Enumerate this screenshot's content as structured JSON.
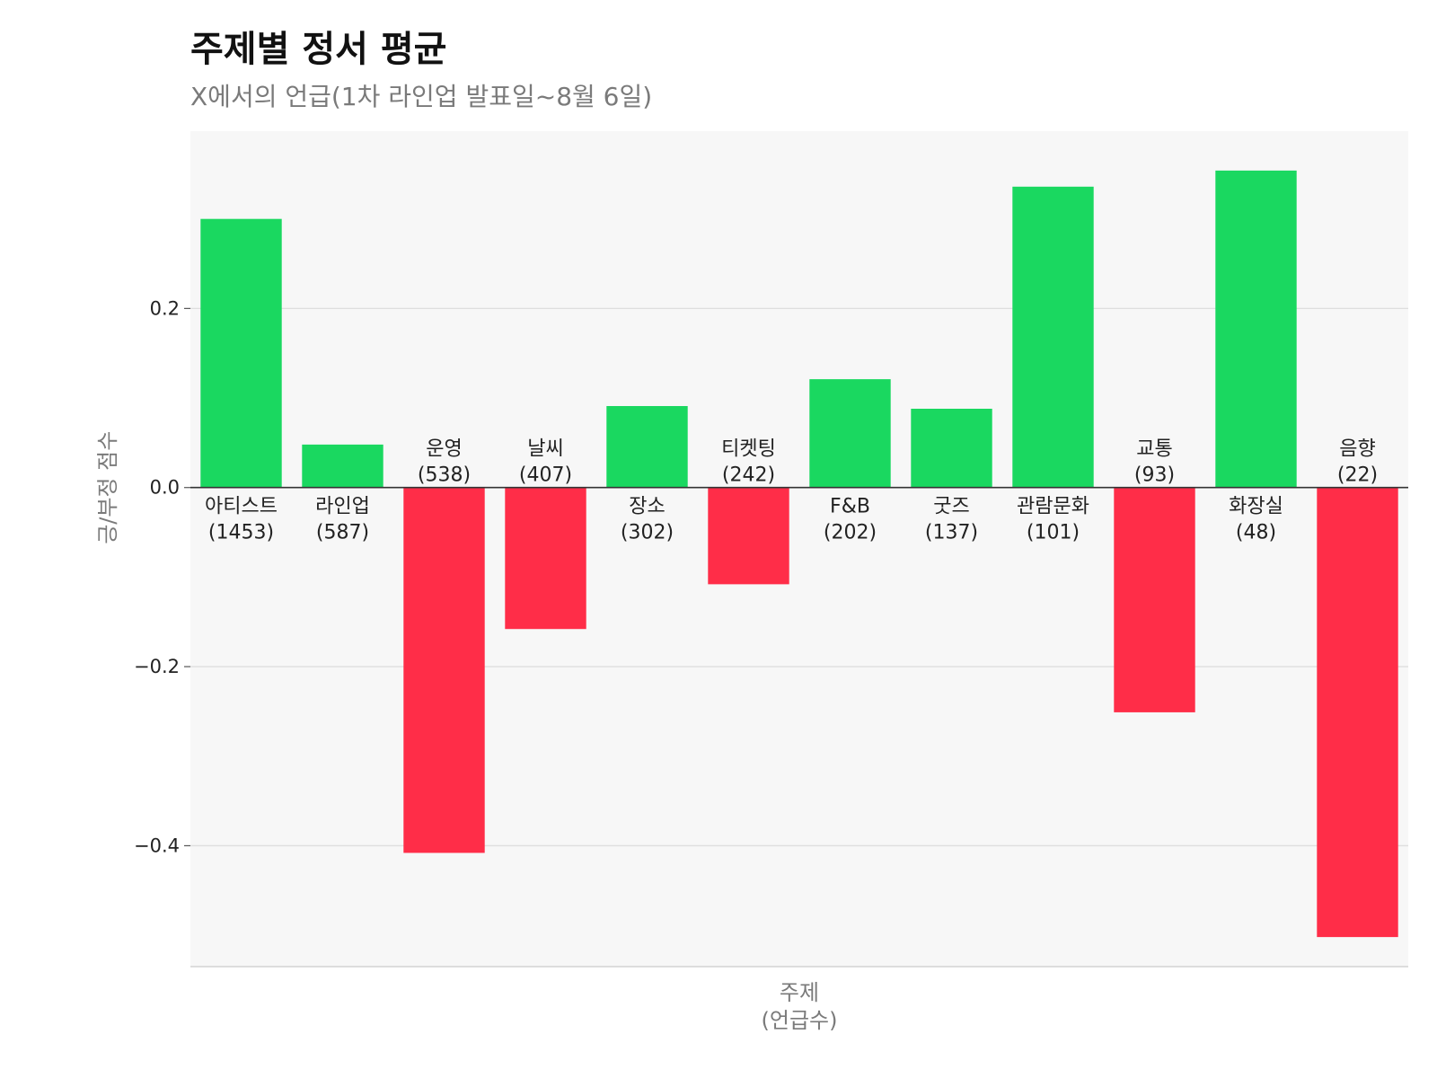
{
  "chart_data": {
    "type": "bar",
    "title": "주제별 정서 평균",
    "subtitle": "X에서의 언급(1차 라인업 발표일~8월 6일)",
    "xlabel": [
      "주제",
      "(언급수)"
    ],
    "ylabel": "긍/부정 점수",
    "categories": [
      "아티스트",
      "라인업",
      "운영",
      "날씨",
      "장소",
      "티켓팅",
      "F&B",
      "굿즈",
      "관람문화",
      "교통",
      "화장실",
      "음향"
    ],
    "counts": [
      "(1453)",
      "(587)",
      "(538)",
      "(407)",
      "(302)",
      "(242)",
      "(202)",
      "(137)",
      "(101)",
      "(93)",
      "(48)",
      "(22)"
    ],
    "values": [
      0.3,
      0.048,
      -0.408,
      -0.158,
      0.091,
      -0.108,
      0.121,
      0.088,
      0.336,
      -0.251,
      0.354,
      -0.502
    ],
    "ylim": [
      -0.535,
      0.398
    ],
    "yticks": [
      -0.4,
      -0.2,
      0.0,
      0.2
    ],
    "ytick_labels": [
      "−0.4",
      "−0.2",
      "0.0",
      "0.2"
    ],
    "grid": true,
    "colors": {
      "positive": "#1ad860",
      "negative": "#ff2d48",
      "panel": "#f7f7f7",
      "grid": "#dedede",
      "zero": "#333333"
    }
  }
}
